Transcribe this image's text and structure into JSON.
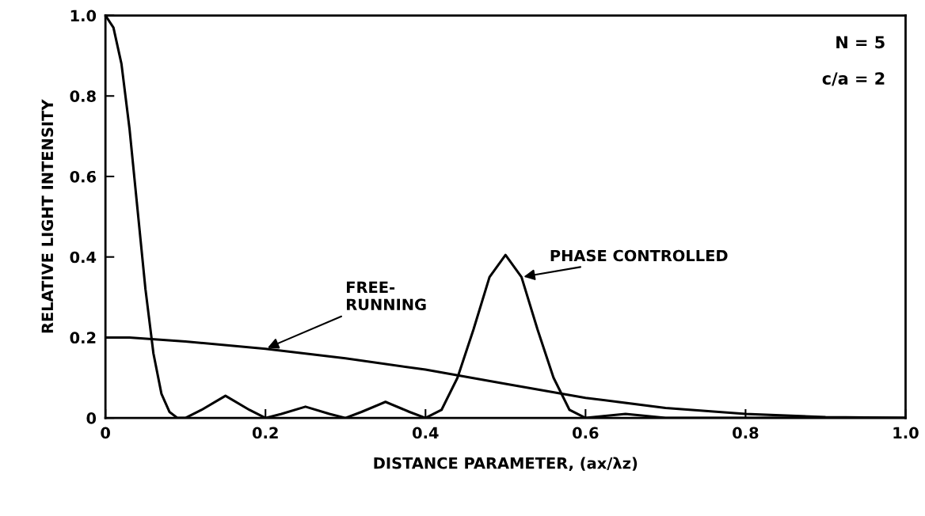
{
  "chart_data": {
    "type": "line",
    "xlabel": "DISTANCE PARAMETER, (ax/λz)",
    "ylabel": "RELATIVE LIGHT INTENSITY",
    "annotations": [
      "N = 5",
      "c/a = 2"
    ],
    "xlim": [
      0,
      1.0
    ],
    "ylim": [
      0,
      1.0
    ],
    "xticks": [
      0,
      0.2,
      0.4,
      0.6,
      0.8,
      {
        "value": 1.0,
        "label": "1.0"
      }
    ],
    "yticks": [
      0,
      0.2,
      0.4,
      0.6,
      0.8,
      {
        "value": 1.0,
        "label": "1.0"
      }
    ],
    "grid": false,
    "legend": false,
    "marker": "none",
    "line_style": "solid",
    "series": [
      {
        "name": "PHASE CONTROLLED",
        "color": "#000000",
        "x": [
          0,
          0.01,
          0.02,
          0.03,
          0.04,
          0.05,
          0.06,
          0.07,
          0.08,
          0.09,
          0.1,
          0.12,
          0.15,
          0.18,
          0.2,
          0.22,
          0.25,
          0.28,
          0.3,
          0.32,
          0.35,
          0.38,
          0.4,
          0.42,
          0.44,
          0.46,
          0.48,
          0.5,
          0.52,
          0.54,
          0.56,
          0.58,
          0.6,
          0.62,
          0.65,
          0.68,
          0.7,
          0.8,
          0.9,
          1.0
        ],
        "values": [
          1.0,
          0.97,
          0.88,
          0.72,
          0.52,
          0.32,
          0.16,
          0.06,
          0.015,
          0.0,
          0.0,
          0.02,
          0.055,
          0.02,
          0.0,
          0.01,
          0.028,
          0.01,
          0.0,
          0.015,
          0.04,
          0.015,
          0.0,
          0.02,
          0.1,
          0.22,
          0.35,
          0.405,
          0.35,
          0.22,
          0.1,
          0.02,
          0.0,
          0.004,
          0.01,
          0.004,
          0.0,
          0.0,
          0.0,
          0.0
        ]
      },
      {
        "name": "FREE-\nRUNNING",
        "color": "#000000",
        "x": [
          0,
          0.03,
          0.1,
          0.2,
          0.3,
          0.4,
          0.5,
          0.6,
          0.7,
          0.8,
          0.9,
          1.0
        ],
        "values": [
          0.2,
          0.2,
          0.19,
          0.172,
          0.148,
          0.12,
          0.085,
          0.05,
          0.025,
          0.01,
          0.002,
          0.0
        ]
      }
    ]
  }
}
